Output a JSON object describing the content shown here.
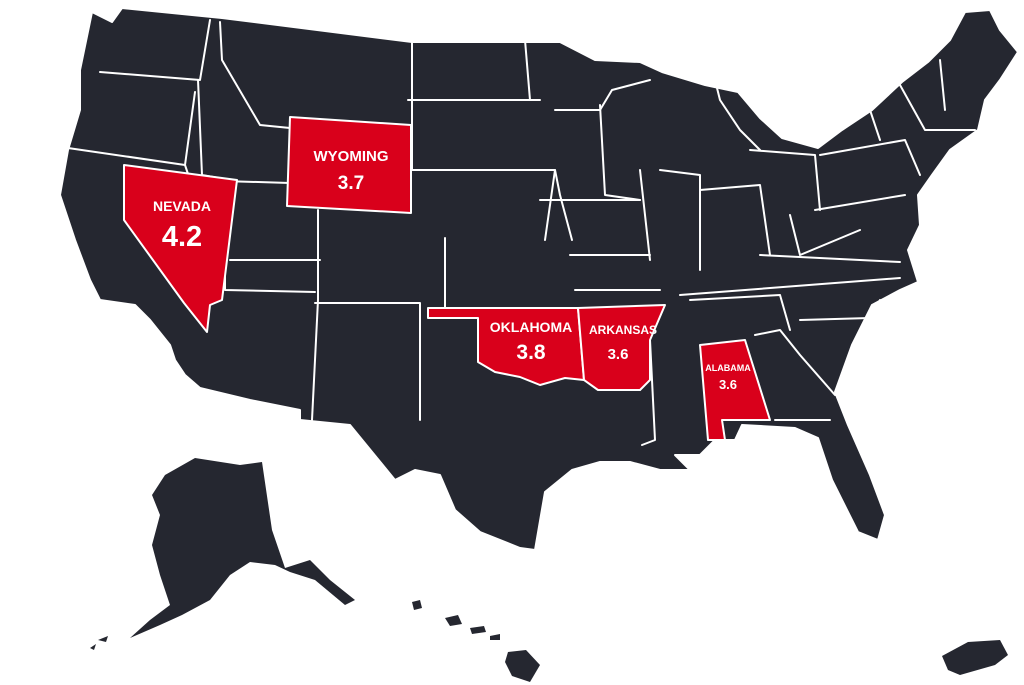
{
  "map": {
    "colors": {
      "base": "#252730",
      "highlight": "#d9001b",
      "border": "#ffffff",
      "text": "#ffffff"
    },
    "highlighted_states": [
      {
        "name": "NEVADA",
        "value": "4.2"
      },
      {
        "name": "WYOMING",
        "value": "3.7"
      },
      {
        "name": "OKLAHOMA",
        "value": "3.8"
      },
      {
        "name": "ARKANSAS",
        "value": "3.6"
      },
      {
        "name": "ALABAMA",
        "value": "3.6"
      }
    ]
  }
}
